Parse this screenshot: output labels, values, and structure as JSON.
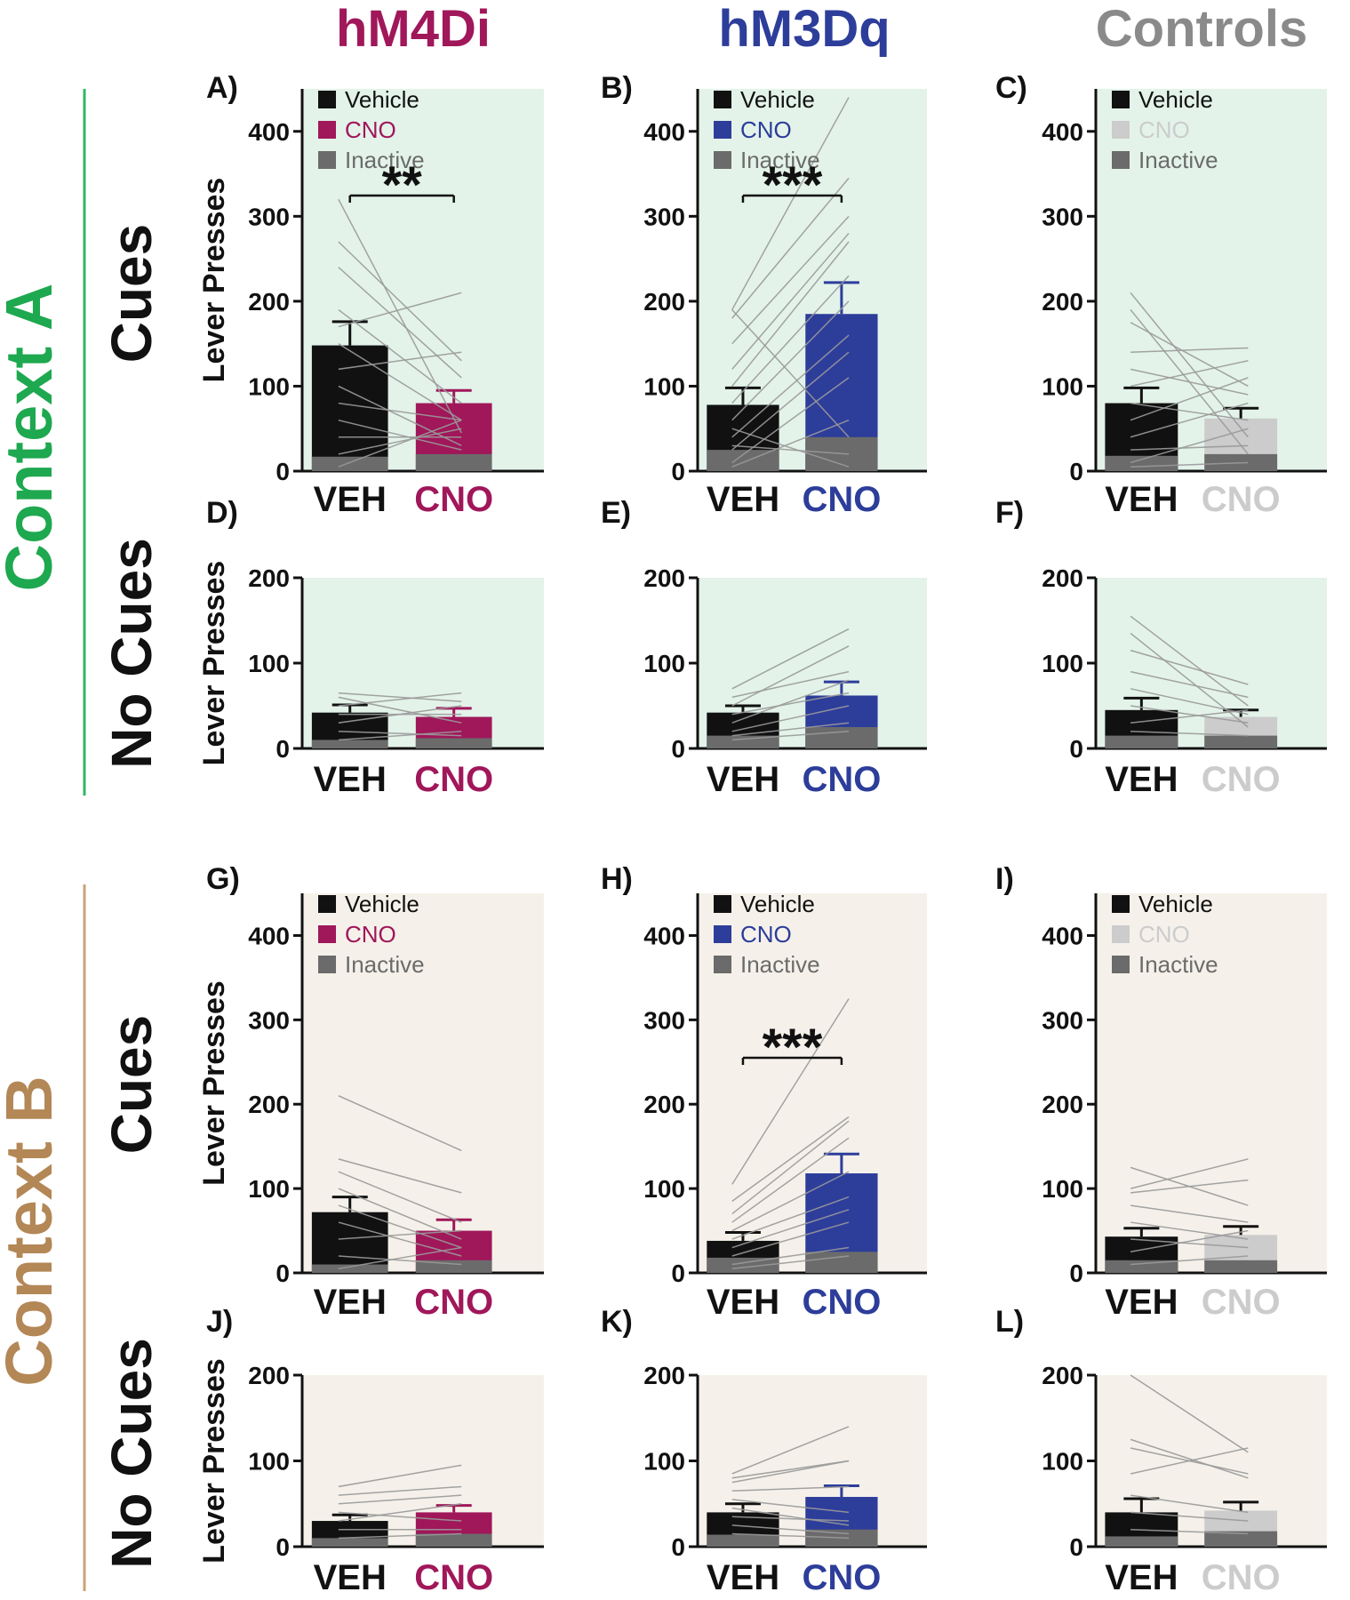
{
  "column_titles": [
    {
      "text": "hM4Di",
      "color": "#a0175a"
    },
    {
      "text": "hM3Dq",
      "color": "#2d3d9a"
    },
    {
      "text": "Controls",
      "color": "#8a8a8a"
    }
  ],
  "context_labels": [
    {
      "text": "Context A",
      "color": "#1ea84f",
      "bg": "#e3f3ea",
      "line": "#2fb860"
    },
    {
      "text": "Context B",
      "color": "#b38756",
      "bg": "#f5f1ea",
      "line": "#c9a37a"
    }
  ],
  "row_labels": [
    "Cues",
    "No Cues",
    "Cues",
    "No Cues"
  ],
  "ylabel": "Lever Presses",
  "legend": {
    "vehicle": "Vehicle",
    "cno": "CNO",
    "inactive": "Inactive"
  },
  "colors": {
    "vehicle": "#111111",
    "inactive": "#6b6b6b",
    "cno": [
      "#a0175a",
      "#2d3d9a",
      "#cccccc"
    ],
    "individual_lines": "#9a9a9a"
  },
  "chart_data": [
    {
      "panel": "A)",
      "type": "bar",
      "group": "hM4Di",
      "context": "Context A",
      "condition": "Cues",
      "categories": [
        "VEH",
        "CNO"
      ],
      "series": [
        {
          "name": "Vehicle/CNO (active)",
          "values": [
            148,
            80
          ]
        },
        {
          "name": "Inactive",
          "values": [
            17,
            20
          ]
        }
      ],
      "error": [
        28,
        15
      ],
      "ylim": [
        0,
        450
      ],
      "yticks": [
        0,
        100,
        200,
        300,
        400
      ],
      "significance": "**",
      "legend": true,
      "individual": [
        [
          320,
          45
        ],
        [
          270,
          130
        ],
        [
          240,
          110
        ],
        [
          190,
          80
        ],
        [
          170,
          210
        ],
        [
          150,
          60
        ],
        [
          120,
          140
        ],
        [
          100,
          30
        ],
        [
          80,
          60
        ],
        [
          60,
          25
        ],
        [
          40,
          40
        ],
        [
          20,
          50
        ],
        [
          5,
          60
        ]
      ]
    },
    {
      "panel": "B)",
      "type": "bar",
      "group": "hM3Dq",
      "context": "Context A",
      "condition": "Cues",
      "categories": [
        "VEH",
        "CNO"
      ],
      "series": [
        {
          "name": "Vehicle/CNO (active)",
          "values": [
            78,
            185
          ]
        },
        {
          "name": "Inactive",
          "values": [
            25,
            40
          ]
        }
      ],
      "error": [
        20,
        37
      ],
      "ylim": [
        0,
        450
      ],
      "yticks": [
        0,
        100,
        200,
        300,
        400
      ],
      "significance": "***",
      "legend": true,
      "individual": [
        [
          190,
          440
        ],
        [
          180,
          345
        ],
        [
          150,
          300
        ],
        [
          120,
          280
        ],
        [
          100,
          270
        ],
        [
          80,
          230
        ],
        [
          60,
          200
        ],
        [
          40,
          160
        ],
        [
          25,
          140
        ],
        [
          10,
          110
        ],
        [
          5,
          60
        ],
        [
          30,
          20
        ],
        [
          50,
          5
        ],
        [
          190,
          40
        ]
      ]
    },
    {
      "panel": "C)",
      "type": "bar",
      "group": "Controls",
      "context": "Context A",
      "condition": "Cues",
      "categories": [
        "VEH",
        "CNO"
      ],
      "series": [
        {
          "name": "Vehicle/CNO (active)",
          "values": [
            80,
            62
          ]
        },
        {
          "name": "Inactive",
          "values": [
            18,
            20
          ]
        }
      ],
      "error": [
        18,
        12
      ],
      "ylim": [
        0,
        450
      ],
      "yticks": [
        0,
        100,
        200,
        300,
        400
      ],
      "significance": "",
      "legend": true,
      "individual": [
        [
          210,
          40
        ],
        [
          190,
          20
        ],
        [
          175,
          100
        ],
        [
          140,
          145
        ],
        [
          120,
          90
        ],
        [
          100,
          130
        ],
        [
          80,
          60
        ],
        [
          60,
          110
        ],
        [
          40,
          80
        ],
        [
          25,
          30
        ],
        [
          10,
          50
        ],
        [
          5,
          10
        ]
      ]
    },
    {
      "panel": "D)",
      "type": "bar",
      "group": "hM4Di",
      "context": "Context A",
      "condition": "No Cues",
      "categories": [
        "VEH",
        "CNO"
      ],
      "series": [
        {
          "name": "Vehicle/CNO (active)",
          "values": [
            42,
            37
          ]
        },
        {
          "name": "Inactive",
          "values": [
            10,
            12
          ]
        }
      ],
      "error": [
        9,
        10
      ],
      "ylim": [
        0,
        200
      ],
      "yticks": [
        0,
        100,
        200
      ],
      "significance": "",
      "legend": false,
      "individual": [
        [
          65,
          55
        ],
        [
          60,
          30
        ],
        [
          50,
          65
        ],
        [
          40,
          40
        ],
        [
          30,
          50
        ],
        [
          20,
          15
        ],
        [
          10,
          20
        ]
      ]
    },
    {
      "panel": "E)",
      "type": "bar",
      "group": "hM3Dq",
      "context": "Context A",
      "condition": "No Cues",
      "categories": [
        "VEH",
        "CNO"
      ],
      "series": [
        {
          "name": "Vehicle/CNO (active)",
          "values": [
            42,
            62
          ]
        },
        {
          "name": "Inactive",
          "values": [
            15,
            25
          ]
        }
      ],
      "error": [
        8,
        16
      ],
      "ylim": [
        0,
        200
      ],
      "yticks": [
        0,
        100,
        200
      ],
      "significance": "",
      "legend": false,
      "individual": [
        [
          70,
          140
        ],
        [
          60,
          90
        ],
        [
          50,
          120
        ],
        [
          40,
          65
        ],
        [
          30,
          80
        ],
        [
          20,
          50
        ],
        [
          15,
          30
        ],
        [
          10,
          20
        ]
      ]
    },
    {
      "panel": "F)",
      "type": "bar",
      "group": "Controls",
      "context": "Context A",
      "condition": "No Cues",
      "categories": [
        "VEH",
        "CNO"
      ],
      "series": [
        {
          "name": "Vehicle/CNO (active)",
          "values": [
            45,
            37
          ]
        },
        {
          "name": "Inactive",
          "values": [
            15,
            15
          ]
        }
      ],
      "error": [
        14,
        8
      ],
      "ylim": [
        0,
        200
      ],
      "yticks": [
        0,
        100,
        200
      ],
      "significance": "",
      "legend": false,
      "individual": [
        [
          155,
          50
        ],
        [
          135,
          25
        ],
        [
          115,
          75
        ],
        [
          90,
          60
        ],
        [
          70,
          40
        ],
        [
          50,
          30
        ],
        [
          30,
          45
        ],
        [
          20,
          15
        ]
      ]
    },
    {
      "panel": "G)",
      "type": "bar",
      "group": "hM4Di",
      "context": "Context B",
      "condition": "Cues",
      "categories": [
        "VEH",
        "CNO"
      ],
      "series": [
        {
          "name": "Vehicle/CNO (active)",
          "values": [
            72,
            50
          ]
        },
        {
          "name": "Inactive",
          "values": [
            10,
            15
          ]
        }
      ],
      "error": [
        18,
        13
      ],
      "ylim": [
        0,
        450
      ],
      "yticks": [
        0,
        100,
        200,
        300,
        400
      ],
      "significance": "",
      "legend": true,
      "individual": [
        [
          210,
          145
        ],
        [
          135,
          95
        ],
        [
          120,
          60
        ],
        [
          100,
          40
        ],
        [
          80,
          30
        ],
        [
          60,
          20
        ],
        [
          40,
          50
        ],
        [
          20,
          10
        ],
        [
          5,
          30
        ]
      ]
    },
    {
      "panel": "H)",
      "type": "bar",
      "group": "hM3Dq",
      "context": "Context B",
      "condition": "Cues",
      "categories": [
        "VEH",
        "CNO"
      ],
      "series": [
        {
          "name": "Vehicle/CNO (active)",
          "values": [
            38,
            118
          ]
        },
        {
          "name": "Inactive",
          "values": [
            18,
            25
          ]
        }
      ],
      "error": [
        10,
        23
      ],
      "ylim": [
        0,
        450
      ],
      "yticks": [
        0,
        100,
        200,
        300,
        400
      ],
      "significance": "***",
      "legend": true,
      "individual": [
        [
          105,
          325
        ],
        [
          85,
          185
        ],
        [
          70,
          180
        ],
        [
          60,
          160
        ],
        [
          50,
          120
        ],
        [
          40,
          90
        ],
        [
          30,
          75
        ],
        [
          20,
          60
        ],
        [
          10,
          30
        ],
        [
          5,
          20
        ]
      ]
    },
    {
      "panel": "I)",
      "type": "bar",
      "group": "Controls",
      "context": "Context B",
      "condition": "Cues",
      "categories": [
        "VEH",
        "CNO"
      ],
      "series": [
        {
          "name": "Vehicle/CNO (active)",
          "values": [
            43,
            45
          ]
        },
        {
          "name": "Inactive",
          "values": [
            15,
            15
          ]
        }
      ],
      "error": [
        10,
        10
      ],
      "ylim": [
        0,
        450
      ],
      "yticks": [
        0,
        100,
        200,
        300,
        400
      ],
      "significance": "",
      "legend": true,
      "individual": [
        [
          125,
          80
        ],
        [
          100,
          135
        ],
        [
          95,
          110
        ],
        [
          80,
          60
        ],
        [
          60,
          40
        ],
        [
          40,
          30
        ],
        [
          25,
          50
        ],
        [
          10,
          20
        ]
      ]
    },
    {
      "panel": "J)",
      "type": "bar",
      "group": "hM4Di",
      "context": "Context B",
      "condition": "No Cues",
      "categories": [
        "VEH",
        "CNO"
      ],
      "series": [
        {
          "name": "Vehicle/CNO (active)",
          "values": [
            30,
            40
          ]
        },
        {
          "name": "Inactive",
          "values": [
            10,
            15
          ]
        }
      ],
      "error": [
        7,
        8
      ],
      "ylim": [
        0,
        200
      ],
      "yticks": [
        0,
        100,
        200
      ],
      "significance": "",
      "legend": false,
      "individual": [
        [
          70,
          95
        ],
        [
          60,
          70
        ],
        [
          50,
          60
        ],
        [
          40,
          30
        ],
        [
          30,
          50
        ],
        [
          20,
          20
        ],
        [
          10,
          15
        ]
      ]
    },
    {
      "panel": "K)",
      "type": "bar",
      "group": "hM3Dq",
      "context": "Context B",
      "condition": "No Cues",
      "categories": [
        "VEH",
        "CNO"
      ],
      "series": [
        {
          "name": "Vehicle/CNO (active)",
          "values": [
            40,
            58
          ]
        },
        {
          "name": "Inactive",
          "values": [
            14,
            20
          ]
        }
      ],
      "error": [
        10,
        13
      ],
      "ylim": [
        0,
        200
      ],
      "yticks": [
        0,
        100,
        200
      ],
      "significance": "",
      "legend": false,
      "individual": [
        [
          85,
          140
        ],
        [
          80,
          100
        ],
        [
          75,
          100
        ],
        [
          65,
          70
        ],
        [
          55,
          40
        ],
        [
          45,
          25
        ],
        [
          35,
          30
        ],
        [
          25,
          15
        ],
        [
          15,
          10
        ]
      ]
    },
    {
      "panel": "L)",
      "type": "bar",
      "group": "Controls",
      "context": "Context B",
      "condition": "No Cues",
      "categories": [
        "VEH",
        "CNO"
      ],
      "series": [
        {
          "name": "Vehicle/CNO (active)",
          "values": [
            40,
            42
          ]
        },
        {
          "name": "Inactive",
          "values": [
            12,
            18
          ]
        }
      ],
      "error": [
        16,
        10
      ],
      "ylim": [
        0,
        200
      ],
      "yticks": [
        0,
        100,
        200
      ],
      "significance": "",
      "legend": false,
      "individual": [
        [
          200,
          110
        ],
        [
          125,
          80
        ],
        [
          115,
          85
        ],
        [
          85,
          115
        ],
        [
          60,
          40
        ],
        [
          40,
          30
        ],
        [
          20,
          15
        ]
      ]
    }
  ]
}
